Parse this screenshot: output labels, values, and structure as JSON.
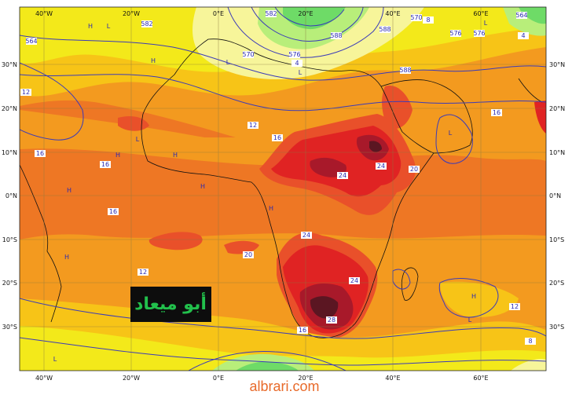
{
  "map": {
    "lon_labels": [
      "40°W",
      "20°W",
      "0°E",
      "20°E",
      "40°E",
      "60°E"
    ],
    "lat_labels": [
      "30°N",
      "20°N",
      "10°N",
      "0°N",
      "10°S",
      "20°S",
      "30°S"
    ],
    "contour_labels": [
      "564",
      "570",
      "582",
      "588",
      "576",
      "588",
      "576",
      "582",
      "588",
      "564",
      "570",
      "576",
      "12",
      "12",
      "16",
      "16",
      "16",
      "16",
      "20",
      "20",
      "24",
      "24",
      "24",
      "24",
      "28",
      "16",
      "12",
      "16",
      "12",
      "8",
      "4",
      "8",
      "4"
    ],
    "pressure_marks": [
      "H",
      "H",
      "H",
      "H",
      "L",
      "L",
      "L",
      "L",
      "L",
      "H",
      "H",
      "L",
      "H",
      "L",
      "H",
      "L",
      "H"
    ],
    "colors": {
      "yellow_light": "#f7f59a",
      "yellow": "#f3e91a",
      "yellow_orange": "#f7c417",
      "orange": "#f39a1f",
      "orange_dark": "#ee7724",
      "red_orange": "#e9502a",
      "red": "#e02323",
      "dark_red": "#a8192a",
      "maroon": "#5b1622",
      "green": "#6edb67",
      "green_light": "#b8ee7a",
      "isoline": "#2a2ab0",
      "coast": "#111111"
    }
  },
  "badge": {
    "text": "أبو ميعاد"
  },
  "footer": {
    "watermark": "albrari.com"
  }
}
